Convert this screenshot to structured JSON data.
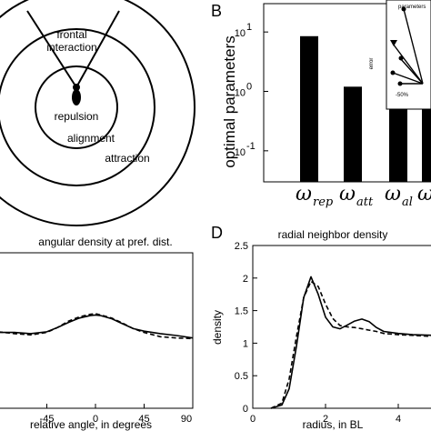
{
  "panels": {
    "A": {
      "zones": {
        "frontal": [
          "frontal",
          "interaction"
        ],
        "repulsion": "repulsion",
        "alignment": "alignment",
        "attraction": "attraction"
      }
    },
    "B": {
      "letter": "B",
      "inset_legend": "parameters",
      "inset_ylabel": "error",
      "inset_xtick": "-50%"
    },
    "C": {
      "letter": "",
      "title": "angular density at pref. dist."
    },
    "D": {
      "letter": "D",
      "title": "radial neighbor density"
    }
  },
  "chart_data": [
    {
      "type": "bar",
      "panel": "B",
      "categories": [
        "rep",
        "att",
        "al",
        ""
      ],
      "values": [
        8.5,
        1.2,
        0.75,
        0.6
      ],
      "ylabel": "optimal parameters",
      "yscale": "log",
      "ylim": [
        0.03,
        30
      ],
      "yticks": [
        "10",
        "10",
        "10"
      ],
      "ytick_exponents": [
        "1",
        "0",
        "-1"
      ],
      "tick_symbol": "ω",
      "series_color": "#000000"
    },
    {
      "type": "line",
      "panel": "C",
      "title": "angular density at pref. dist.",
      "xlabel": "relative angle, in degrees",
      "xlim": [
        -90,
        90
      ],
      "xticks": [
        "-45",
        "0",
        "45",
        "90"
      ],
      "ylim": [
        0,
        2.5
      ],
      "series": [
        {
          "style": "solid",
          "x": [
            -90,
            -75,
            -60,
            -45,
            -35,
            -25,
            -15,
            -5,
            0,
            5,
            15,
            25,
            35,
            45,
            60,
            75,
            90
          ],
          "y": [
            1.22,
            1.22,
            1.2,
            1.23,
            1.3,
            1.38,
            1.45,
            1.49,
            1.5,
            1.49,
            1.44,
            1.36,
            1.28,
            1.24,
            1.2,
            1.17,
            1.13
          ]
        },
        {
          "style": "dashed",
          "x": [
            -90,
            -75,
            -60,
            -45,
            -35,
            -25,
            -15,
            -5,
            0,
            5,
            15,
            25,
            35,
            45,
            60,
            75,
            90
          ],
          "y": [
            1.23,
            1.2,
            1.18,
            1.22,
            1.3,
            1.4,
            1.47,
            1.51,
            1.52,
            1.5,
            1.45,
            1.37,
            1.28,
            1.22,
            1.15,
            1.13,
            1.12
          ]
        }
      ]
    },
    {
      "type": "line",
      "panel": "D",
      "title": "radial neighbor density",
      "xlabel": "radius, in BL",
      "ylabel": "density",
      "xlim": [
        0,
        5
      ],
      "ylim": [
        0,
        2.5
      ],
      "xticks": [
        "0",
        "2",
        "4"
      ],
      "yticks": [
        "0",
        "0.5",
        "1",
        "1.5",
        "2",
        "2.5"
      ],
      "series": [
        {
          "style": "solid",
          "x": [
            0.5,
            0.8,
            1.0,
            1.2,
            1.4,
            1.6,
            1.8,
            2.0,
            2.2,
            2.4,
            2.6,
            2.8,
            3.0,
            3.2,
            3.4,
            3.6,
            4.0,
            4.4,
            5.0
          ],
          "y": [
            0,
            0.05,
            0.3,
            0.95,
            1.7,
            2.02,
            1.75,
            1.4,
            1.25,
            1.22,
            1.28,
            1.34,
            1.37,
            1.33,
            1.24,
            1.18,
            1.15,
            1.13,
            1.12
          ]
        },
        {
          "style": "dashed",
          "x": [
            0.5,
            0.8,
            1.0,
            1.2,
            1.4,
            1.6,
            1.8,
            2.0,
            2.2,
            2.4,
            2.6,
            2.8,
            3.0,
            3.2,
            3.4,
            3.6,
            4.0,
            4.4,
            5.0
          ],
          "y": [
            0,
            0.08,
            0.45,
            1.1,
            1.7,
            1.95,
            1.87,
            1.6,
            1.38,
            1.27,
            1.25,
            1.24,
            1.22,
            1.2,
            1.18,
            1.15,
            1.13,
            1.12,
            1.1
          ]
        }
      ]
    }
  ]
}
